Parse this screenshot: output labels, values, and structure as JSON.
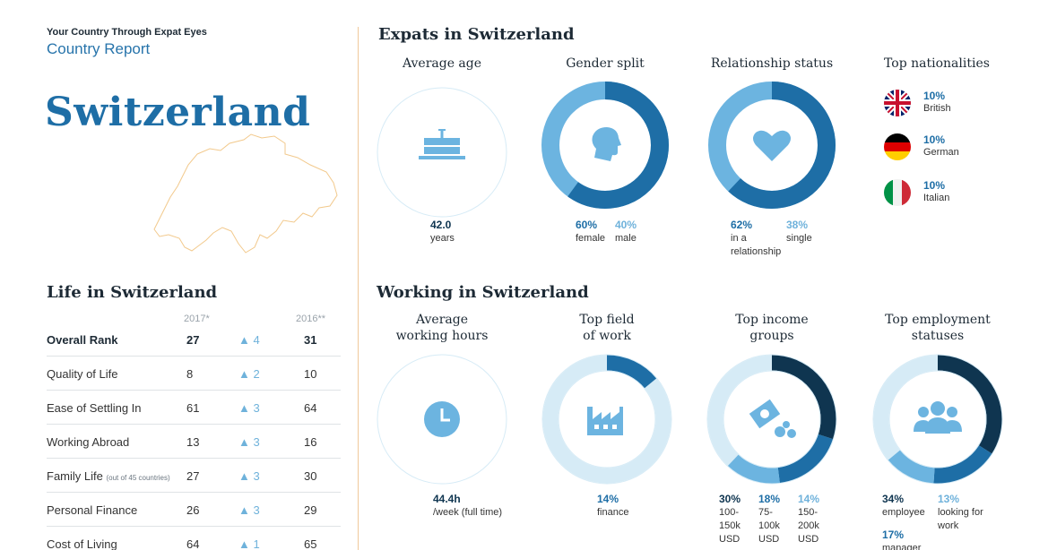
{
  "header": {
    "kicker": "Your Country Through Expat Eyes",
    "report": "Country Report",
    "country": "Switzerland"
  },
  "life": {
    "title": "Life in Switzerland",
    "col_2017": "2017*",
    "col_2016": "2016**",
    "rows": [
      {
        "label": "Overall Rank",
        "v2017": "27",
        "change": "▲ 4",
        "v2016": "31"
      },
      {
        "label": "Quality of Life",
        "v2017": "8",
        "change": "▲ 2",
        "v2016": "10"
      },
      {
        "label": "Ease of Settling In",
        "v2017": "61",
        "change": "▲ 3",
        "v2016": "64"
      },
      {
        "label": "Working Abroad",
        "v2017": "13",
        "change": "▲ 3",
        "v2016": "16"
      },
      {
        "label": "Family Life",
        "note": "(out of 45 countries)",
        "v2017": "27",
        "change": "▲ 3",
        "v2016": "30"
      },
      {
        "label": "Personal Finance",
        "v2017": "26",
        "change": "▲ 3",
        "v2016": "29"
      },
      {
        "label": "Cost of Living",
        "v2017": "64",
        "change": "▲ 1",
        "v2016": "65"
      }
    ]
  },
  "expats": {
    "title": "Expats in Switzerland",
    "average_age": {
      "heading": "Average age",
      "value": "42.0",
      "unit": "years",
      "icon": "cake-icon"
    },
    "gender": {
      "heading": "Gender split",
      "female_pct": "60%",
      "female": "female",
      "male_pct": "40%",
      "male": "male",
      "icon": "head-icon",
      "share": 0.6
    },
    "relationship": {
      "heading": "Relationship status",
      "rel_pct": "62%",
      "rel_line1": "in a",
      "rel_line2": "relationship",
      "single_pct": "38%",
      "single": "single",
      "icon": "heart-icon",
      "share": 0.62
    },
    "nationalities": {
      "heading": "Top nationalities",
      "items": [
        {
          "pct": "10%",
          "name": "British",
          "flag": "uk-flag-icon"
        },
        {
          "pct": "10%",
          "name": "German",
          "flag": "germany-flag-icon"
        },
        {
          "pct": "10%",
          "name": "Italian",
          "flag": "italy-flag-icon"
        }
      ]
    }
  },
  "working": {
    "title": "Working in Switzerland",
    "hours": {
      "heading1": "Average",
      "heading2": "working hours",
      "value": "44.4h",
      "unit": "/week (full time)",
      "icon": "clock-icon"
    },
    "field": {
      "heading1": "Top field",
      "heading2": "of work",
      "pct": "14%",
      "label": "finance",
      "icon": "factory-icon",
      "share": 0.14
    },
    "income": {
      "heading1": "Top income",
      "heading2": "groups",
      "icon": "money-icon",
      "groups": [
        {
          "pct": "30%",
          "l1": "100-",
          "l2": "150k",
          "l3": "USD",
          "share": 0.3
        },
        {
          "pct": "18%",
          "l1": "75-",
          "l2": "100k",
          "l3": "USD",
          "share": 0.18
        },
        {
          "pct": "14%",
          "l1": "150-",
          "l2": "200k",
          "l3": "USD",
          "share": 0.14
        }
      ]
    },
    "employment": {
      "heading1": "Top employment",
      "heading2": "statuses",
      "icon": "people-icon",
      "statuses": [
        {
          "pct": "34%",
          "label": "employee",
          "share": 0.34
        },
        {
          "pct": "17%",
          "label": "manager",
          "share": 0.17
        },
        {
          "pct": "13%",
          "l1": "looking for",
          "l2": "work",
          "share": 0.13
        }
      ]
    }
  },
  "colors": {
    "dark_blue": "#1e6ea6",
    "light_blue": "#6cb4e0",
    "navy": "#0f3550",
    "track": "#d6ebf6"
  }
}
